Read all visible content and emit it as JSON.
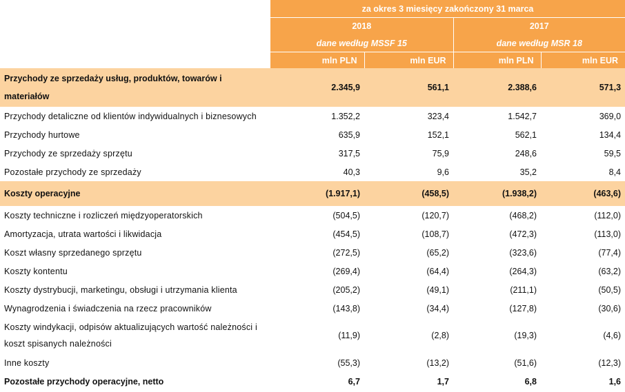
{
  "header": {
    "period": "za okres 3 miesięcy zakończony 31 marca",
    "years": [
      {
        "year": "2018",
        "basis": "dane według MSSF 15"
      },
      {
        "year": "2017",
        "basis": "dane według MSR 18"
      }
    ],
    "units": [
      "mln PLN",
      "mln EUR",
      "mln PLN",
      "mln EUR"
    ]
  },
  "rows": [
    {
      "label": "Przychody ze sprzedaży usług, produktów, towarów i materiałów",
      "values": [
        "2.345,9",
        "561,1",
        "2.388,6",
        "571,3"
      ]
    },
    {
      "label": "Przychody detaliczne od klientów indywidualnych i biznesowych",
      "values": [
        "1.352,2",
        "323,4",
        "1.542,7",
        "369,0"
      ]
    },
    {
      "label": "Przychody hurtowe",
      "values": [
        "635,9",
        "152,1",
        "562,1",
        "134,4"
      ]
    },
    {
      "label": "Przychody ze sprzedaży sprzętu",
      "values": [
        "317,5",
        "75,9",
        "248,6",
        "59,5"
      ]
    },
    {
      "label": "Pozostałe przychody ze sprzedaży",
      "values": [
        "40,3",
        "9,6",
        "35,2",
        "8,4"
      ]
    },
    {
      "label": "Koszty operacyjne",
      "values": [
        "(1.917,1)",
        "(458,5)",
        "(1.938,2)",
        "(463,6)"
      ]
    },
    {
      "label": "Koszty techniczne i rozliczeń międzyoperatorskich",
      "values": [
        "(504,5)",
        "(120,7)",
        "(468,2)",
        "(112,0)"
      ]
    },
    {
      "label": "Amortyzacja, utrata wartości i likwidacja",
      "values": [
        "(454,5)",
        "(108,7)",
        "(472,3)",
        "(113,0)"
      ]
    },
    {
      "label": "Koszt własny sprzedanego sprzętu",
      "values": [
        "(272,5)",
        "(65,2)",
        "(323,6)",
        "(77,4)"
      ]
    },
    {
      "label": "Koszty kontentu",
      "values": [
        "(269,4)",
        "(64,4)",
        "(264,3)",
        "(63,2)"
      ]
    },
    {
      "label": "Koszty dystrybucji, marketingu, obsługi i utrzymania klienta",
      "values": [
        "(205,2)",
        "(49,1)",
        "(211,1)",
        "(50,5)"
      ]
    },
    {
      "label": "Wynagrodzenia i świadczenia na rzecz pracowników",
      "values": [
        "(143,8)",
        "(34,4)",
        "(127,8)",
        "(30,6)"
      ]
    },
    {
      "label": "Koszty windykacji, odpisów aktualizujących wartość należności i koszt spisanych należności",
      "values": [
        "(11,9)",
        "(2,8)",
        "(19,3)",
        "(4,6)"
      ]
    },
    {
      "label": "Inne koszty",
      "values": [
        "(55,3)",
        "(13,2)",
        "(51,6)",
        "(12,3)"
      ]
    },
    {
      "label": "Pozostałe przychody operacyjne, netto",
      "values": [
        "6,7",
        "1,7",
        "6,8",
        "1,6"
      ]
    }
  ]
}
